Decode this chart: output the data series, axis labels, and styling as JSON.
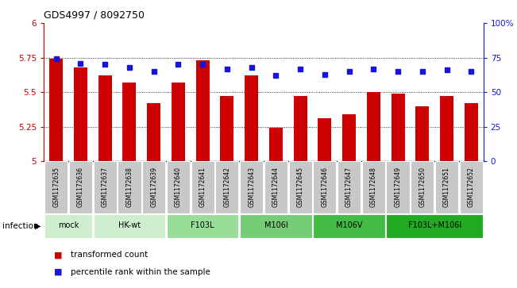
{
  "title": "GDS4997 / 8092750",
  "samples": [
    "GSM1172635",
    "GSM1172636",
    "GSM1172637",
    "GSM1172638",
    "GSM1172639",
    "GSM1172640",
    "GSM1172641",
    "GSM1172642",
    "GSM1172643",
    "GSM1172644",
    "GSM1172645",
    "GSM1172646",
    "GSM1172647",
    "GSM1172648",
    "GSM1172649",
    "GSM1172650",
    "GSM1172651",
    "GSM1172652"
  ],
  "bar_values": [
    5.74,
    5.68,
    5.62,
    5.57,
    5.42,
    5.57,
    5.73,
    5.47,
    5.62,
    5.24,
    5.47,
    5.31,
    5.34,
    5.5,
    5.49,
    5.4,
    5.47,
    5.42
  ],
  "dot_values": [
    74,
    71,
    70,
    68,
    65,
    70,
    70,
    67,
    68,
    62,
    67,
    63,
    65,
    67,
    65,
    65,
    66,
    65
  ],
  "bar_color": "#cc0000",
  "dot_color": "#1515dd",
  "ylim_left": [
    5.0,
    6.0
  ],
  "ylim_right": [
    0,
    100
  ],
  "yticks_left": [
    5.0,
    5.25,
    5.5,
    5.75,
    6.0
  ],
  "ytick_labels_left": [
    "5",
    "5.25",
    "5.5",
    "5.75",
    "6"
  ],
  "yticks_right": [
    0,
    25,
    50,
    75,
    100
  ],
  "ytick_labels_right": [
    "0",
    "25",
    "50",
    "75",
    "100%"
  ],
  "groups_def": [
    {
      "label": "mock",
      "indices": [
        0,
        1
      ],
      "color": "#cceecc"
    },
    {
      "label": "HK-wt",
      "indices": [
        2,
        3,
        4
      ],
      "color": "#cceecc"
    },
    {
      "label": "F103L",
      "indices": [
        5,
        6,
        7
      ],
      "color": "#99dd99"
    },
    {
      "label": "M106I",
      "indices": [
        8,
        9,
        10
      ],
      "color": "#77cc77"
    },
    {
      "label": "M106V",
      "indices": [
        11,
        12,
        13
      ],
      "color": "#44bb44"
    },
    {
      "label": "F103L+M106I",
      "indices": [
        14,
        15,
        16,
        17
      ],
      "color": "#22aa22"
    }
  ],
  "infection_label": "infection",
  "legend_bar_label": "transformed count",
  "legend_dot_label": "percentile rank within the sample",
  "sample_box_color": "#c8c8c8",
  "plot_bg": "#ffffff"
}
